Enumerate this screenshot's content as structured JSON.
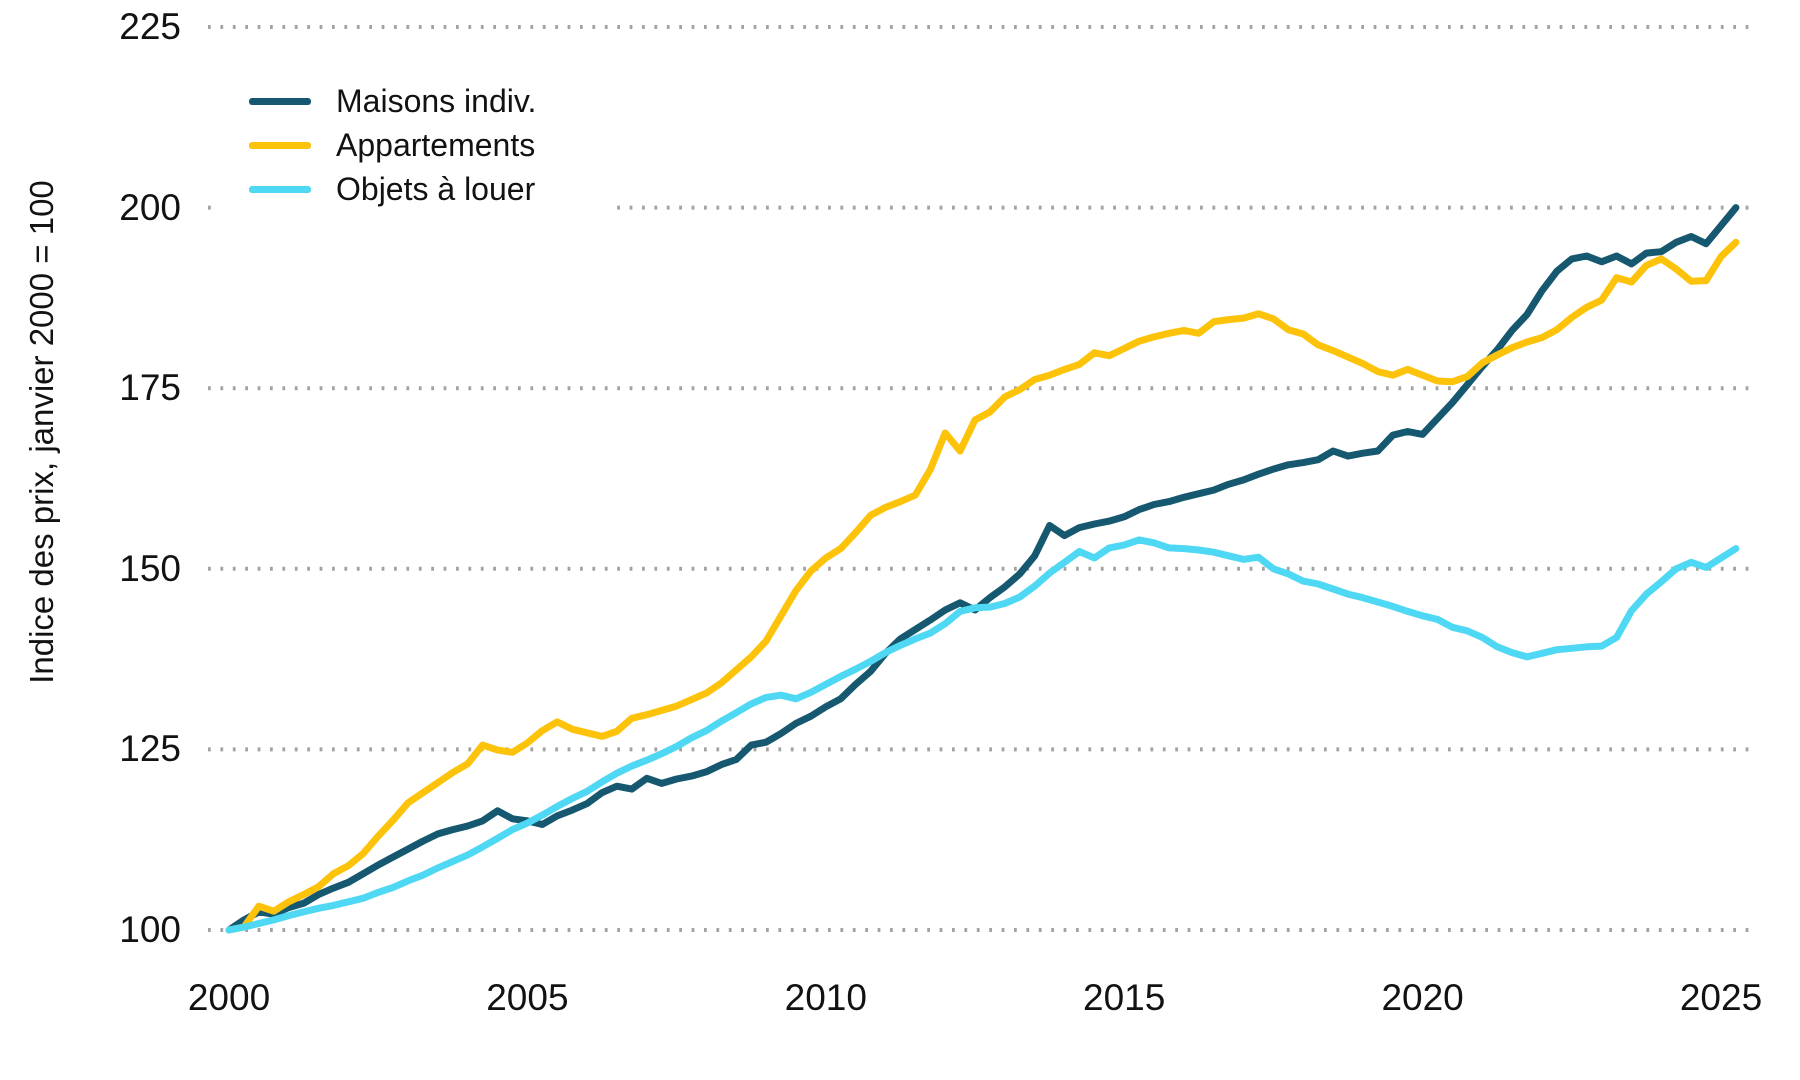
{
  "chart_data": {
    "type": "line",
    "title": "",
    "xlabel": "",
    "ylabel": "Indice des prix, janvier 2000 = 100",
    "x_ticks": [
      2000,
      2005,
      2010,
      2015,
      2020,
      2025
    ],
    "y_ticks": [
      100,
      125,
      150,
      175,
      200,
      225
    ],
    "ylim": [
      100,
      225
    ],
    "xlim": [
      2000,
      2025.5
    ],
    "grid": "horizontal-dotted",
    "grid_color": "#a3a3a3",
    "text_color": "#121212",
    "background": "#ffffff",
    "legend_position": "top-left",
    "x": [
      2000,
      2000.25,
      2000.5,
      2000.75,
      2001,
      2001.25,
      2001.5,
      2001.75,
      2002,
      2002.25,
      2002.5,
      2002.75,
      2003,
      2003.25,
      2003.5,
      2003.75,
      2004,
      2004.25,
      2004.5,
      2004.75,
      2005,
      2005.25,
      2005.5,
      2005.75,
      2006,
      2006.25,
      2006.5,
      2006.75,
      2007,
      2007.25,
      2007.5,
      2007.75,
      2008,
      2008.25,
      2008.5,
      2008.75,
      2009,
      2009.25,
      2009.5,
      2009.75,
      2010,
      2010.25,
      2010.5,
      2010.75,
      2011,
      2011.25,
      2011.5,
      2011.75,
      2012,
      2012.25,
      2012.5,
      2012.75,
      2013,
      2013.25,
      2013.5,
      2013.75,
      2014,
      2014.25,
      2014.5,
      2014.75,
      2015,
      2015.25,
      2015.5,
      2015.75,
      2016,
      2016.25,
      2016.5,
      2016.75,
      2017,
      2017.25,
      2017.5,
      2017.75,
      2018,
      2018.25,
      2018.5,
      2018.75,
      2019,
      2019.25,
      2019.5,
      2019.75,
      2020,
      2020.25,
      2020.5,
      2020.75,
      2021,
      2021.25,
      2021.5,
      2021.75,
      2022,
      2022.25,
      2022.5,
      2022.75,
      2023,
      2023.25,
      2023.5,
      2023.75,
      2024,
      2024.25,
      2024.5,
      2024.75,
      2025,
      2025.25
    ],
    "series": [
      {
        "name": "Maisons indiv.",
        "color": "#15586F",
        "values": [
          100.0,
          101.4,
          102.5,
          102.2,
          103.1,
          103.7,
          104.9,
          105.8,
          106.6,
          107.8,
          109.0,
          110.1,
          111.2,
          112.3,
          113.3,
          113.9,
          114.4,
          115.1,
          116.5,
          115.4,
          115.1,
          114.6,
          115.8,
          116.6,
          117.5,
          119.0,
          119.9,
          119.5,
          121.0,
          120.3,
          120.9,
          121.3,
          121.9,
          122.9,
          123.6,
          125.6,
          126.0,
          127.2,
          128.6,
          129.6,
          130.9,
          132.0,
          134.0,
          135.8,
          138.3,
          140.3,
          141.6,
          142.9,
          144.3,
          145.3,
          144.3,
          146.0,
          147.5,
          149.3,
          151.8,
          156.0,
          154.6,
          155.7,
          156.2,
          156.6,
          157.2,
          158.2,
          158.9,
          159.3,
          159.9,
          160.4,
          160.9,
          161.7,
          162.3,
          163.1,
          163.8,
          164.4,
          164.7,
          165.1,
          166.3,
          165.6,
          166.0,
          166.3,
          168.5,
          169.0,
          168.6,
          170.8,
          173.0,
          175.5,
          178.0,
          180.3,
          183.0,
          185.2,
          188.5,
          191.2,
          192.9,
          193.3,
          192.5,
          193.3,
          192.2,
          193.7,
          193.9,
          195.2,
          196.0,
          195.0,
          197.5,
          200.0
        ]
      },
      {
        "name": "Appartements",
        "color": "#FDC30A",
        "values": [
          100.0,
          100.4,
          103.3,
          102.6,
          103.9,
          104.9,
          106.0,
          107.8,
          108.9,
          110.6,
          113.0,
          115.2,
          117.6,
          119.0,
          120.4,
          121.8,
          123.0,
          125.6,
          124.9,
          124.6,
          125.9,
          127.6,
          128.8,
          127.8,
          127.3,
          126.8,
          127.5,
          129.3,
          129.8,
          130.4,
          131.0,
          131.9,
          132.8,
          134.2,
          136.0,
          137.8,
          140.0,
          143.5,
          147.0,
          149.7,
          151.5,
          152.8,
          155.0,
          157.4,
          158.5,
          159.3,
          160.2,
          163.7,
          168.8,
          166.3,
          170.6,
          171.7,
          173.8,
          174.8,
          176.2,
          176.8,
          177.6,
          178.3,
          179.9,
          179.5,
          180.5,
          181.5,
          182.1,
          182.6,
          183.0,
          182.6,
          184.2,
          184.5,
          184.7,
          185.3,
          184.6,
          183.1,
          182.5,
          181.0,
          180.2,
          179.3,
          178.4,
          177.3,
          176.8,
          177.6,
          176.8,
          176.0,
          175.9,
          176.6,
          178.5,
          179.6,
          180.6,
          181.4,
          182.0,
          183.1,
          184.8,
          186.2,
          187.2,
          190.3,
          189.7,
          192.0,
          192.9,
          191.5,
          189.8,
          189.9,
          193.2,
          195.2
        ]
      },
      {
        "name": "Objets à louer",
        "color": "#4FD8F4",
        "values": [
          100.0,
          100.4,
          100.9,
          101.4,
          102.0,
          102.5,
          103.0,
          103.4,
          103.9,
          104.4,
          105.2,
          105.9,
          106.8,
          107.6,
          108.6,
          109.5,
          110.4,
          111.5,
          112.7,
          113.9,
          114.8,
          115.9,
          117.1,
          118.2,
          119.2,
          120.5,
          121.7,
          122.7,
          123.5,
          124.4,
          125.4,
          126.6,
          127.6,
          128.9,
          130.1,
          131.3,
          132.2,
          132.5,
          132.0,
          132.9,
          134.0,
          135.1,
          136.1,
          137.2,
          138.4,
          139.4,
          140.3,
          141.1,
          142.4,
          144.1,
          144.6,
          144.7,
          145.2,
          146.1,
          147.6,
          149.4,
          150.9,
          152.4,
          151.5,
          152.9,
          153.3,
          154.0,
          153.6,
          152.9,
          152.8,
          152.6,
          152.3,
          151.8,
          151.3,
          151.6,
          150.0,
          149.3,
          148.3,
          147.9,
          147.2,
          146.5,
          146.0,
          145.4,
          144.8,
          144.1,
          143.5,
          143.0,
          141.9,
          141.4,
          140.5,
          139.2,
          138.4,
          137.8,
          138.3,
          138.8,
          139.0,
          139.2,
          139.3,
          140.5,
          144.2,
          146.5,
          148.2,
          150.0,
          150.9,
          150.2,
          151.5,
          152.8
        ]
      }
    ]
  }
}
